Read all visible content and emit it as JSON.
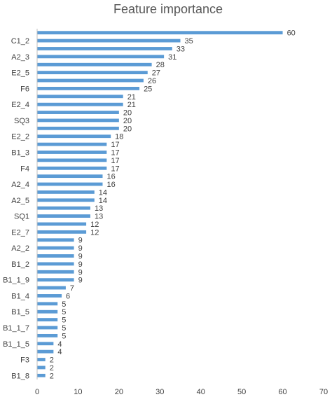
{
  "chart_data": {
    "type": "bar",
    "orientation": "horizontal",
    "title": "Feature importance",
    "xlabel": "",
    "ylabel": "",
    "xlim": [
      0,
      70
    ],
    "xticks": [
      0,
      10,
      20,
      30,
      40,
      50,
      60,
      70
    ],
    "grid": false,
    "legend": "none",
    "bar_color": "#5b9bd5",
    "categories": [
      "",
      "C1_2",
      "",
      "A2_3",
      "",
      "E2_5",
      "",
      "F6",
      "",
      "E2_4",
      "",
      "SQ3",
      "",
      "E2_2",
      "",
      "B1_3",
      "",
      "F4",
      "",
      "A2_4",
      "",
      "A2_5",
      "",
      "SQ1",
      "",
      "E2_7",
      "",
      "A2_2",
      "",
      "B1_2",
      "",
      "B1_1_9",
      "",
      "B1_4",
      "",
      "B1_5",
      "",
      "B1_1_7",
      "",
      "B1_1_5",
      "",
      "F3",
      "",
      "B1_8"
    ],
    "values": [
      60,
      35,
      33,
      31,
      28,
      27,
      26,
      25,
      21,
      21,
      20,
      20,
      20,
      18,
      17,
      17,
      17,
      17,
      16,
      16,
      14,
      14,
      13,
      13,
      12,
      12,
      9,
      9,
      9,
      9,
      9,
      9,
      7,
      6,
      5,
      5,
      5,
      5,
      5,
      4,
      4,
      2,
      2,
      2
    ]
  }
}
